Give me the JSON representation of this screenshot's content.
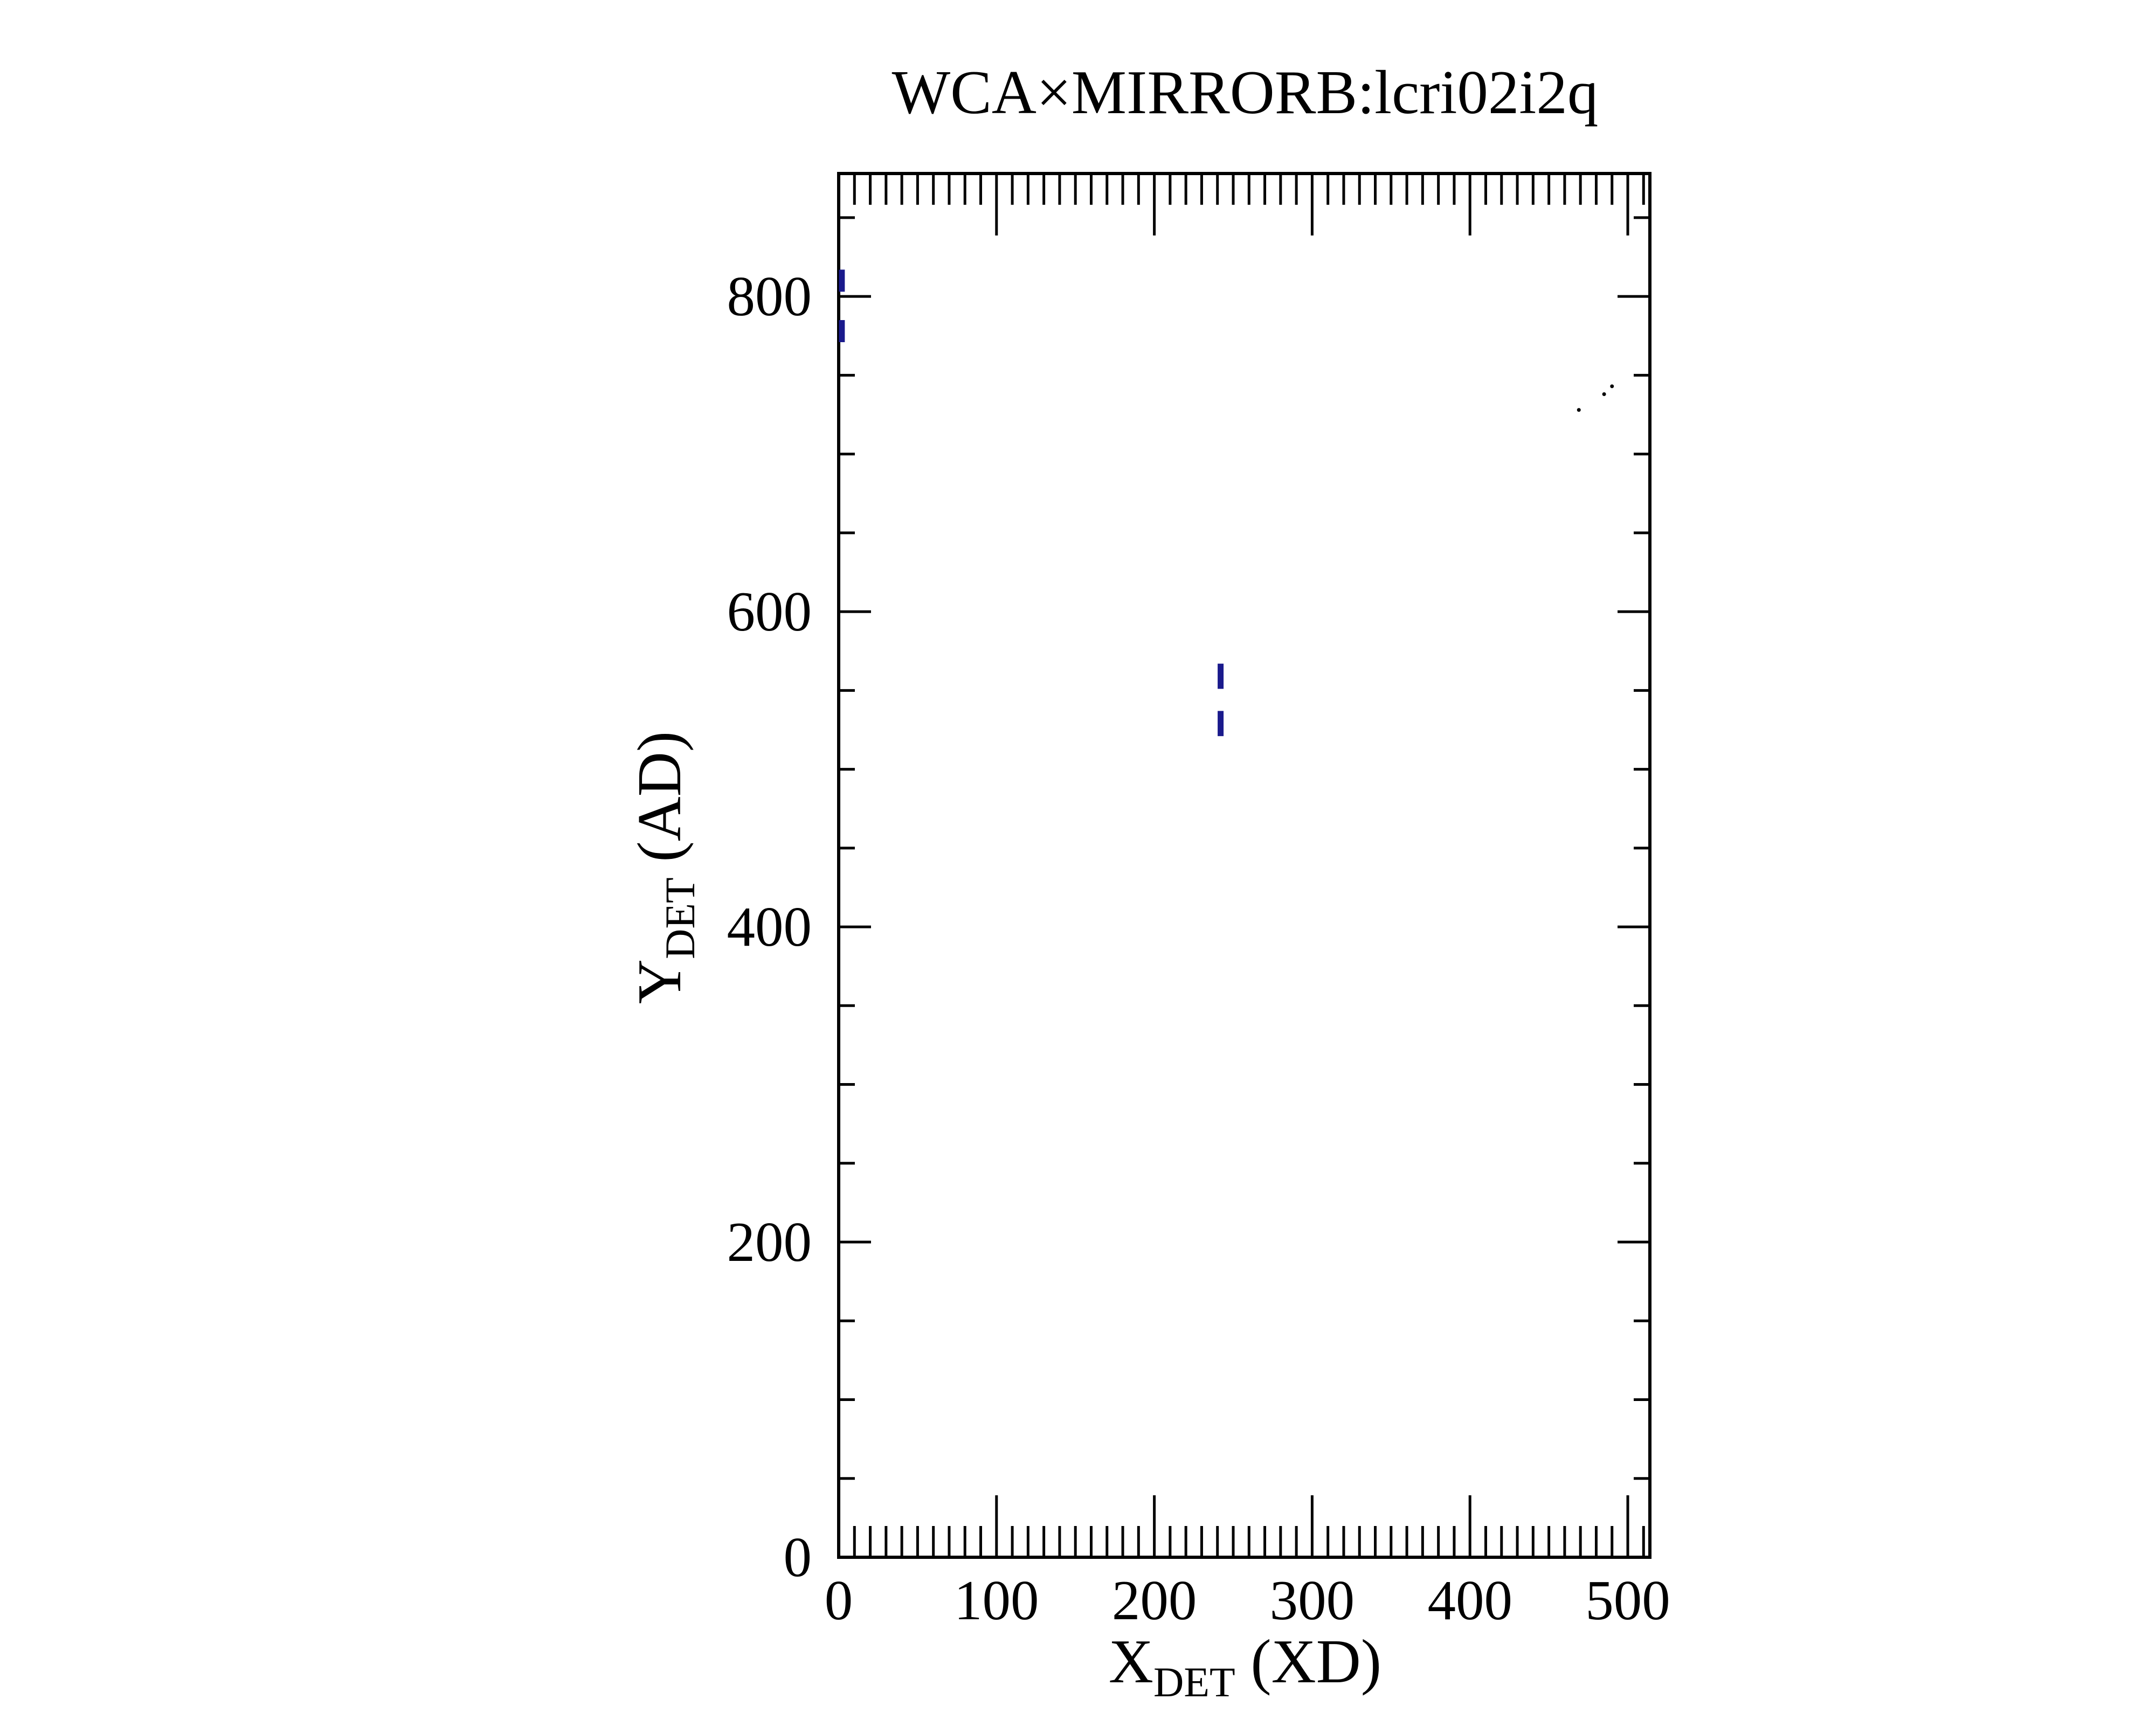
{
  "chart_data": {
    "type": "scatter",
    "title": "WCA×MIRRORB:lcri02i2q",
    "xlabel": {
      "main": "X",
      "sub": "DET",
      "suffix": " (XD)"
    },
    "ylabel": {
      "main": "Y",
      "sub": "DET",
      "suffix": " (AD)"
    },
    "xlim": [
      0,
      514
    ],
    "ylim": [
      0,
      878
    ],
    "xticks": [
      0,
      100,
      200,
      300,
      400,
      500
    ],
    "yticks": [
      0,
      200,
      400,
      600,
      800
    ],
    "x_minor_step": 10,
    "y_minor_step": 50,
    "grid": false,
    "legend": "none",
    "series": [
      {
        "color": "#1a1a8c",
        "marker": "vertical-dash",
        "points": [
          {
            "x": 2,
            "y": 1,
            "y0": 803,
            "y1": 817
          },
          {
            "x": 2,
            "y": 1,
            "y0": 771,
            "y1": 785
          },
          {
            "x": 242,
            "y": 1,
            "y0": 551,
            "y1": 567
          },
          {
            "x": 242,
            "y": 1,
            "y0": 521,
            "y1": 537
          }
        ]
      },
      {
        "color": "#000000",
        "marker": "dot",
        "points": [
          {
            "x": 469,
            "y": 728
          },
          {
            "x": 485,
            "y": 738
          },
          {
            "x": 490,
            "y": 743
          }
        ]
      }
    ]
  }
}
